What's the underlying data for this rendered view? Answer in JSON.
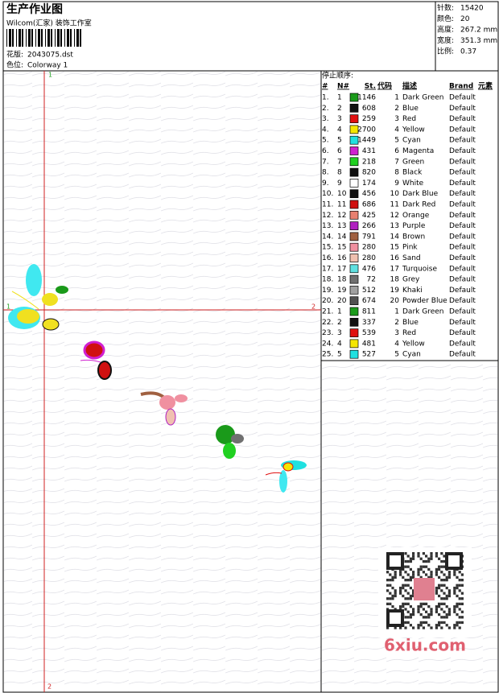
{
  "header": {
    "title": "生产作业图",
    "company": "Wilcom(汇家) 装饰工作室",
    "design_label": "花版:",
    "design": "2043075.dst",
    "colorway_label": "色位:",
    "colorway": "Colorway 1"
  },
  "info": [
    {
      "label": "针数:",
      "value": "15420"
    },
    {
      "label": "颜色:",
      "value": "20"
    },
    {
      "label": "高度:",
      "value": "267.2 mm"
    },
    {
      "label": "宽度:",
      "value": "351.3 mm"
    },
    {
      "label": "比例:",
      "value": "0.37"
    }
  ],
  "table": {
    "title": "停止顺序:",
    "columns": [
      "#",
      "N#",
      "St.",
      "代码",
      "描述",
      "Brand",
      "元素"
    ],
    "rows": [
      {
        "num": "1.",
        "n": "1",
        "color": "#1a9a1a",
        "stitches": 1146,
        "code": 1,
        "desc": "Dark Green",
        "brand": "Default"
      },
      {
        "num": "2.",
        "n": "2",
        "color": "#111111",
        "stitches": 608,
        "code": 2,
        "desc": "Blue",
        "brand": "Default"
      },
      {
        "num": "3.",
        "n": "3",
        "color": "#e01010",
        "stitches": 259,
        "code": 3,
        "desc": "Red",
        "brand": "Default"
      },
      {
        "num": "4.",
        "n": "4",
        "color": "#f5e600",
        "stitches": 2700,
        "code": 4,
        "desc": "Yellow",
        "brand": "Default"
      },
      {
        "num": "5.",
        "n": "5",
        "color": "#20e0e0",
        "stitches": 1449,
        "code": 5,
        "desc": "Cyan",
        "brand": "Default"
      },
      {
        "num": "6.",
        "n": "6",
        "color": "#d020d0",
        "stitches": 431,
        "code": 6,
        "desc": "Magenta",
        "brand": "Default"
      },
      {
        "num": "7.",
        "n": "7",
        "color": "#20d020",
        "stitches": 218,
        "code": 7,
        "desc": "Green",
        "brand": "Default"
      },
      {
        "num": "8.",
        "n": "8",
        "color": "#111111",
        "stitches": 820,
        "code": 8,
        "desc": "Black",
        "brand": "Default"
      },
      {
        "num": "9.",
        "n": "9",
        "color": "#ffffff",
        "stitches": 174,
        "code": 9,
        "desc": "White",
        "brand": "Default"
      },
      {
        "num": "10.",
        "n": "10",
        "color": "#111111",
        "stitches": 456,
        "code": 10,
        "desc": "Dark Blue",
        "brand": "Default"
      },
      {
        "num": "11.",
        "n": "11",
        "color": "#d01010",
        "stitches": 686,
        "code": 11,
        "desc": "Dark Red",
        "brand": "Default"
      },
      {
        "num": "12.",
        "n": "12",
        "color": "#e88070",
        "stitches": 425,
        "code": 12,
        "desc": "Orange",
        "brand": "Default"
      },
      {
        "num": "13.",
        "n": "13",
        "color": "#b020c0",
        "stitches": 266,
        "code": 13,
        "desc": "Purple",
        "brand": "Default"
      },
      {
        "num": "14.",
        "n": "14",
        "color": "#a06040",
        "stitches": 791,
        "code": 14,
        "desc": "Brown",
        "brand": "Default"
      },
      {
        "num": "15.",
        "n": "15",
        "color": "#f090a0",
        "stitches": 280,
        "code": 15,
        "desc": "Pink",
        "brand": "Default"
      },
      {
        "num": "16.",
        "n": "16",
        "color": "#f0c0b0",
        "stitches": 280,
        "code": 16,
        "desc": "Sand",
        "brand": "Default"
      },
      {
        "num": "17.",
        "n": "17",
        "color": "#60e0e0",
        "stitches": 476,
        "code": 17,
        "desc": "Turquoise",
        "brand": "Default"
      },
      {
        "num": "18.",
        "n": "18",
        "color": "#707070",
        "stitches": 72,
        "code": 18,
        "desc": "Grey",
        "brand": "Default"
      },
      {
        "num": "19.",
        "n": "19",
        "color": "#a0a0a0",
        "stitches": 512,
        "code": 19,
        "desc": "Khaki",
        "brand": "Default"
      },
      {
        "num": "20.",
        "n": "20",
        "color": "#505050",
        "stitches": 674,
        "code": 20,
        "desc": "Powder Blue",
        "brand": "Default"
      },
      {
        "num": "21.",
        "n": "1",
        "color": "#1a9a1a",
        "stitches": 811,
        "code": 1,
        "desc": "Dark Green",
        "brand": "Default"
      },
      {
        "num": "22.",
        "n": "2",
        "color": "#111111",
        "stitches": 337,
        "code": 2,
        "desc": "Blue",
        "brand": "Default"
      },
      {
        "num": "23.",
        "n": "3",
        "color": "#e01010",
        "stitches": 539,
        "code": 3,
        "desc": "Red",
        "brand": "Default"
      },
      {
        "num": "24.",
        "n": "4",
        "color": "#f5e600",
        "stitches": 481,
        "code": 4,
        "desc": "Yellow",
        "brand": "Default"
      },
      {
        "num": "25.",
        "n": "5",
        "color": "#20e0e0",
        "stitches": 527,
        "code": 5,
        "desc": "Cyan",
        "brand": "Default"
      }
    ]
  },
  "markers": {
    "top": "1",
    "left": "1",
    "right": "2",
    "bottom": "2"
  },
  "watermark": "6xiu.com"
}
